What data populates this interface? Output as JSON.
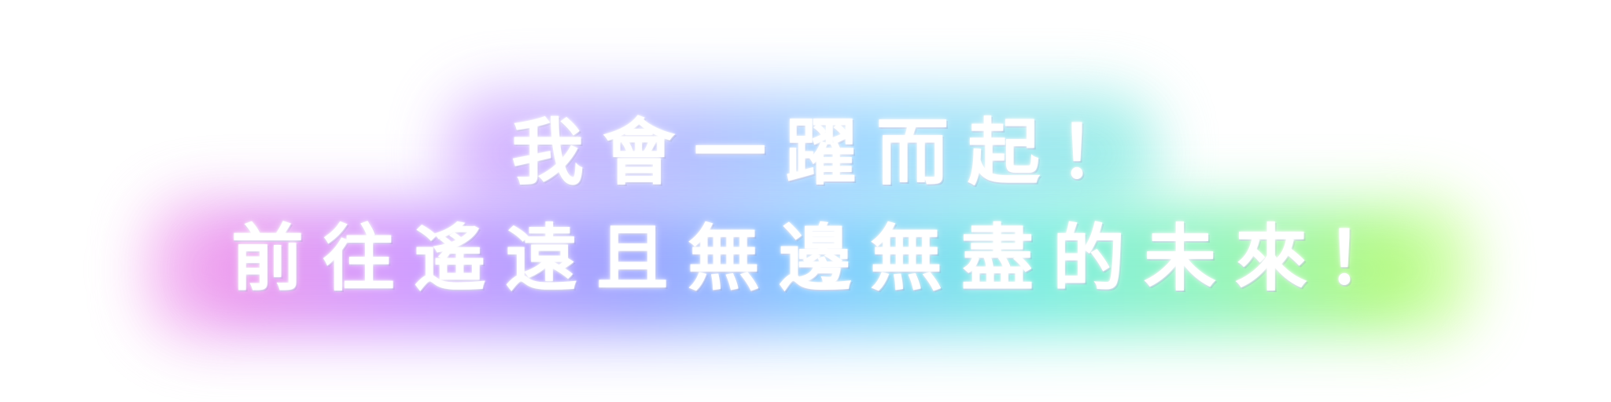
{
  "banner": {
    "line_1": "我會一躍而起！",
    "line_2": "前往遙遠且無邊無盡的未來！"
  },
  "colors": {
    "background": "#ffffff",
    "text": "#ffffff",
    "glow_gradient": [
      "#f3a2ec",
      "#d6a0ff",
      "#a7a8ff",
      "#8fd2ff",
      "#8af1e6",
      "#9cf7c7",
      "#c7ff86"
    ]
  }
}
